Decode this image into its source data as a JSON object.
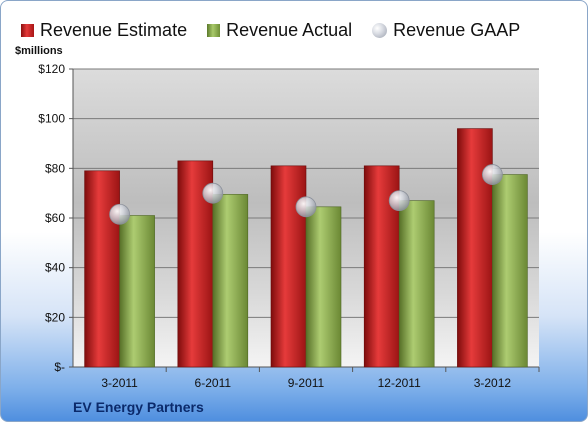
{
  "chart_data": {
    "type": "bar",
    "categories": [
      "3-2011",
      "6-2011",
      "9-2011",
      "12-2011",
      "3-2012"
    ],
    "series": [
      {
        "name": "Revenue Estimate",
        "values": [
          79,
          83,
          81,
          81,
          96
        ],
        "color": "#c8201f",
        "mark": "bar"
      },
      {
        "name": "Revenue Actual",
        "values": [
          61,
          69.5,
          64.5,
          67,
          77.5
        ],
        "color": "#8fb054",
        "mark": "bar"
      },
      {
        "name": "Revenue GAAP",
        "values": [
          61.5,
          70,
          64.5,
          67,
          77.5
        ],
        "color": "#c7cad2",
        "mark": "marker"
      }
    ],
    "ylabel": "$millions",
    "ylim": [
      0,
      120
    ],
    "yticks": [
      0,
      20,
      40,
      60,
      80,
      100,
      120
    ],
    "ytick_labels": [
      "$-",
      "$20",
      "$40",
      "$60",
      "$80",
      "$100",
      "$120"
    ],
    "grid": true,
    "legend_position": "top"
  },
  "footer": {
    "company": "EV Energy Partners"
  }
}
